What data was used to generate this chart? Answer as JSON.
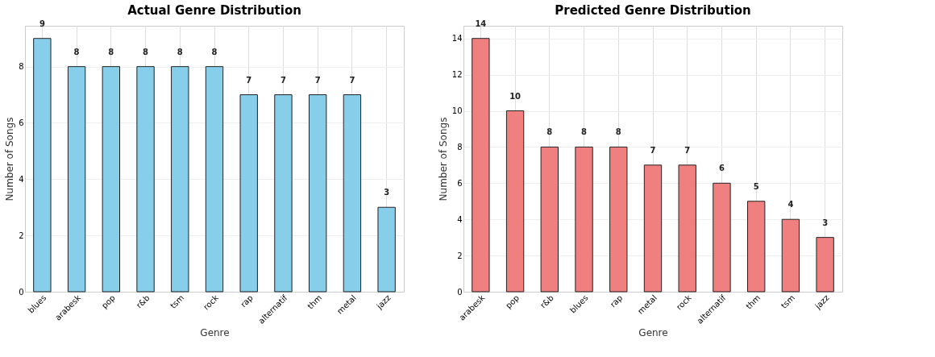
{
  "chart_data": [
    {
      "type": "bar",
      "title": "Actual Genre Distribution",
      "xlabel": "Genre",
      "ylabel": "Number of Songs",
      "categories": [
        "blues",
        "arabesk",
        "pop",
        "r&b",
        "tsm",
        "rock",
        "rap",
        "alternatif",
        "thm",
        "metal",
        "jazz"
      ],
      "values": [
        9,
        8,
        8,
        8,
        8,
        8,
        7,
        7,
        7,
        7,
        3
      ],
      "color": "#87ceeb",
      "ylim": [
        0,
        9.45
      ],
      "yticks": [
        0,
        2,
        4,
        6,
        8
      ],
      "grid": true,
      "data_labels": true
    },
    {
      "type": "bar",
      "title": "Predicted Genre Distribution",
      "xlabel": "Genre",
      "ylabel": "Number of Songs",
      "categories": [
        "arabesk",
        "pop",
        "r&b",
        "blues",
        "rap",
        "metal",
        "rock",
        "alternatif",
        "thm",
        "tsm",
        "jazz"
      ],
      "values": [
        14,
        10,
        8,
        8,
        8,
        7,
        7,
        6,
        5,
        4,
        3
      ],
      "color": "#f08080",
      "ylim": [
        0,
        14.7
      ],
      "yticks": [
        0,
        2,
        4,
        6,
        8,
        10,
        12,
        14
      ],
      "grid": true,
      "data_labels": true
    }
  ]
}
